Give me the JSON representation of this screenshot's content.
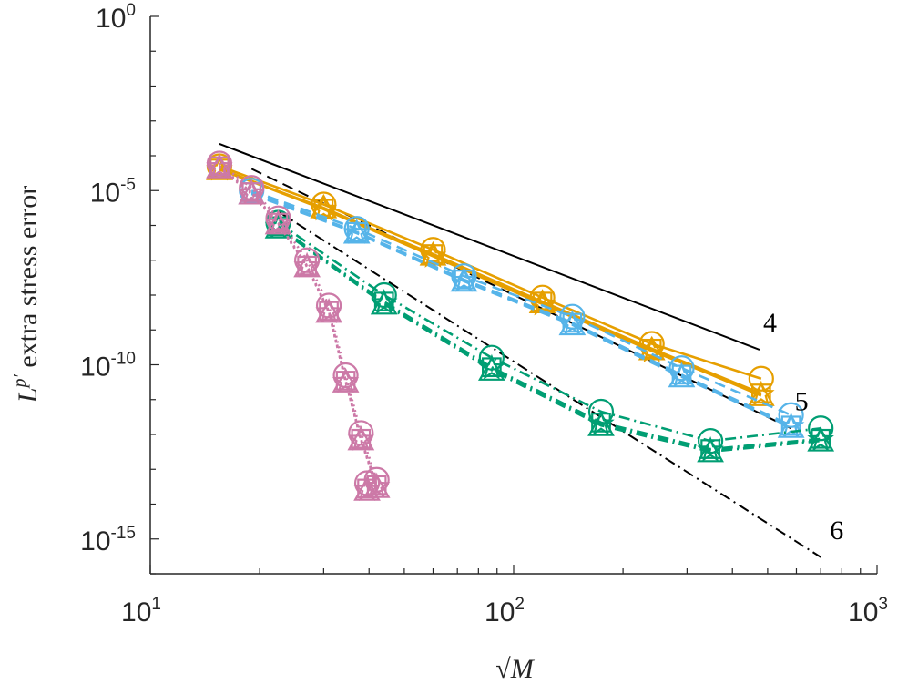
{
  "chart_data": {
    "type": "line",
    "xscale": "log",
    "yscale": "log",
    "xlim": [
      10,
      1000
    ],
    "ylim": [
      1e-16,
      1
    ],
    "grid": false,
    "xlabel": "√M",
    "ylabel": "extra stress error",
    "ylabel_prefix": "L",
    "ylabel_sup": "p′",
    "xticks": [
      {
        "value": 10,
        "base": "10",
        "exp": "1"
      },
      {
        "value": 100,
        "base": "10",
        "exp": "2"
      },
      {
        "value": 1000,
        "base": "10",
        "exp": "3"
      }
    ],
    "yticks": [
      {
        "value": 1,
        "base": "10",
        "exp": "0"
      },
      {
        "value": 1e-05,
        "base": "10",
        "exp": "-5"
      },
      {
        "value": 1e-10,
        "base": "10",
        "exp": "-10"
      },
      {
        "value": 1e-15,
        "base": "10",
        "exp": "-15"
      }
    ],
    "reference_lines": [
      {
        "label": "4",
        "style": "solid",
        "x": [
          15.5,
          475
        ],
        "y": [
          0.00022,
          2.7e-10
        ]
      },
      {
        "label": "5",
        "style": "dashed",
        "x": [
          19,
          580
        ],
        "y": [
          4.2e-05,
          1.5e-12
        ]
      },
      {
        "label": "6",
        "style": "dashdot",
        "x": [
          22.5,
          700
        ],
        "y": [
          2.5e-06,
          3e-16
        ]
      }
    ],
    "series": [
      {
        "color": "#E69F00",
        "style": "solid",
        "variants": [
          {
            "marker": "circle",
            "x": [
              15.5,
              30,
              60,
              120,
              240,
              480
            ],
            "y": [
              5e-05,
              4e-06,
              2e-07,
              8.5e-09,
              4e-10,
              4e-11
            ]
          },
          {
            "marker": "triangle",
            "x": [
              15.5,
              30,
              60,
              120,
              240,
              480
            ],
            "y": [
              4e-05,
              3.2e-06,
              1.4e-07,
              6e-09,
              2.7e-10,
              1.3e-11
            ]
          },
          {
            "marker": "square",
            "x": [
              15.5,
              30,
              60,
              120,
              240,
              480
            ],
            "y": [
              4.3e-05,
              3e-06,
              1.5e-07,
              6.5e-09,
              2.9e-10,
              1.5e-11
            ]
          },
          {
            "marker": "star",
            "x": [
              15.5,
              30,
              60,
              120,
              240,
              480
            ],
            "y": [
              4.1e-05,
              2.9e-06,
              1.3e-07,
              5.5e-09,
              2.5e-10,
              1.4e-11
            ]
          }
        ]
      },
      {
        "color": "#56B4E9",
        "style": "dashed",
        "variants": [
          {
            "marker": "circle",
            "x": [
              19,
              37,
              73,
              145,
              290,
              580
            ],
            "y": [
              1e-05,
              8e-07,
              3.5e-08,
              2.4e-09,
              8e-11,
              3.6e-12
            ]
          },
          {
            "marker": "triangle",
            "x": [
              19,
              37,
              73,
              145,
              290,
              580
            ],
            "y": [
              8e-06,
              6e-07,
              2.5e-08,
              1.4e-09,
              4.5e-11,
              1.6e-12
            ]
          },
          {
            "marker": "square",
            "x": [
              19,
              37,
              73,
              145,
              290,
              580
            ],
            "y": [
              9e-06,
              6.5e-07,
              2.8e-08,
              1.6e-09,
              5.2e-11,
              1.8e-12
            ]
          },
          {
            "marker": "star",
            "x": [
              19,
              37,
              73,
              145,
              290,
              580
            ],
            "y": [
              8.5e-06,
              6.2e-07,
              2.6e-08,
              1.5e-09,
              4.8e-11,
              1.7e-12
            ]
          }
        ]
      },
      {
        "color": "#009E73",
        "style": "dashdot",
        "variants": [
          {
            "marker": "circle",
            "x": [
              22.5,
              44,
              87,
              174,
              348,
              700
            ],
            "y": [
              1.2e-06,
              1e-08,
              1.6e-10,
              4.5e-12,
              6.5e-13,
              1.5e-12
            ]
          },
          {
            "marker": "triangle",
            "x": [
              22.5,
              44,
              87,
              174,
              348,
              700
            ],
            "y": [
              8.5e-07,
              5.5e-09,
              7e-11,
              1.8e-12,
              3.2e-13,
              6.5e-13
            ]
          },
          {
            "marker": "square",
            "x": [
              22.5,
              44,
              87,
              174,
              348,
              700
            ],
            "y": [
              9.5e-07,
              6.5e-09,
              8.5e-11,
              2.2e-12,
              3.8e-13,
              7.5e-13
            ]
          },
          {
            "marker": "star",
            "x": [
              22.5,
              44,
              87,
              174,
              348,
              700
            ],
            "y": [
              9e-07,
              6e-09,
              8e-11,
              2e-12,
              3.5e-13,
              7e-13
            ]
          }
        ]
      },
      {
        "color": "#CC79A7",
        "style": "dotted",
        "variants": [
          {
            "marker": "circle",
            "x": [
              15.5,
              19,
              22.5,
              27,
              31,
              34.5,
              38,
              42,
              39.5
            ],
            "y": [
              6e-05,
              1.2e-05,
              1.6e-06,
              1e-07,
              5e-09,
              5e-11,
              1.1e-12,
              5e-14,
              4e-14
            ]
          },
          {
            "marker": "triangle",
            "x": [
              15.5,
              19,
              22.5,
              27,
              31,
              34.5,
              38,
              42,
              39.5
            ],
            "y": [
              4.5e-05,
              8e-06,
              1.1e-06,
              6.5e-08,
              3.2e-09,
              3.2e-11,
              7e-13,
              3e-14,
              2.5e-14
            ]
          },
          {
            "marker": "square",
            "x": [
              15.5,
              19,
              22.5,
              27,
              31,
              34.5,
              38,
              42,
              39.5
            ],
            "y": [
              5e-05,
              9e-06,
              1.2e-06,
              7e-08,
              3.5e-09,
              3.5e-11,
              7.5e-13,
              3.5e-14,
              2.8e-14
            ]
          },
          {
            "marker": "star",
            "x": [
              15.5,
              19,
              22.5,
              27,
              31,
              34.5,
              38,
              42,
              39.5
            ],
            "y": [
              4.8e-05,
              8.5e-06,
              1.15e-06,
              6.8e-08,
              3.3e-09,
              3.3e-11,
              7.2e-13,
              3.2e-14,
              2.6e-14
            ]
          }
        ]
      }
    ]
  }
}
